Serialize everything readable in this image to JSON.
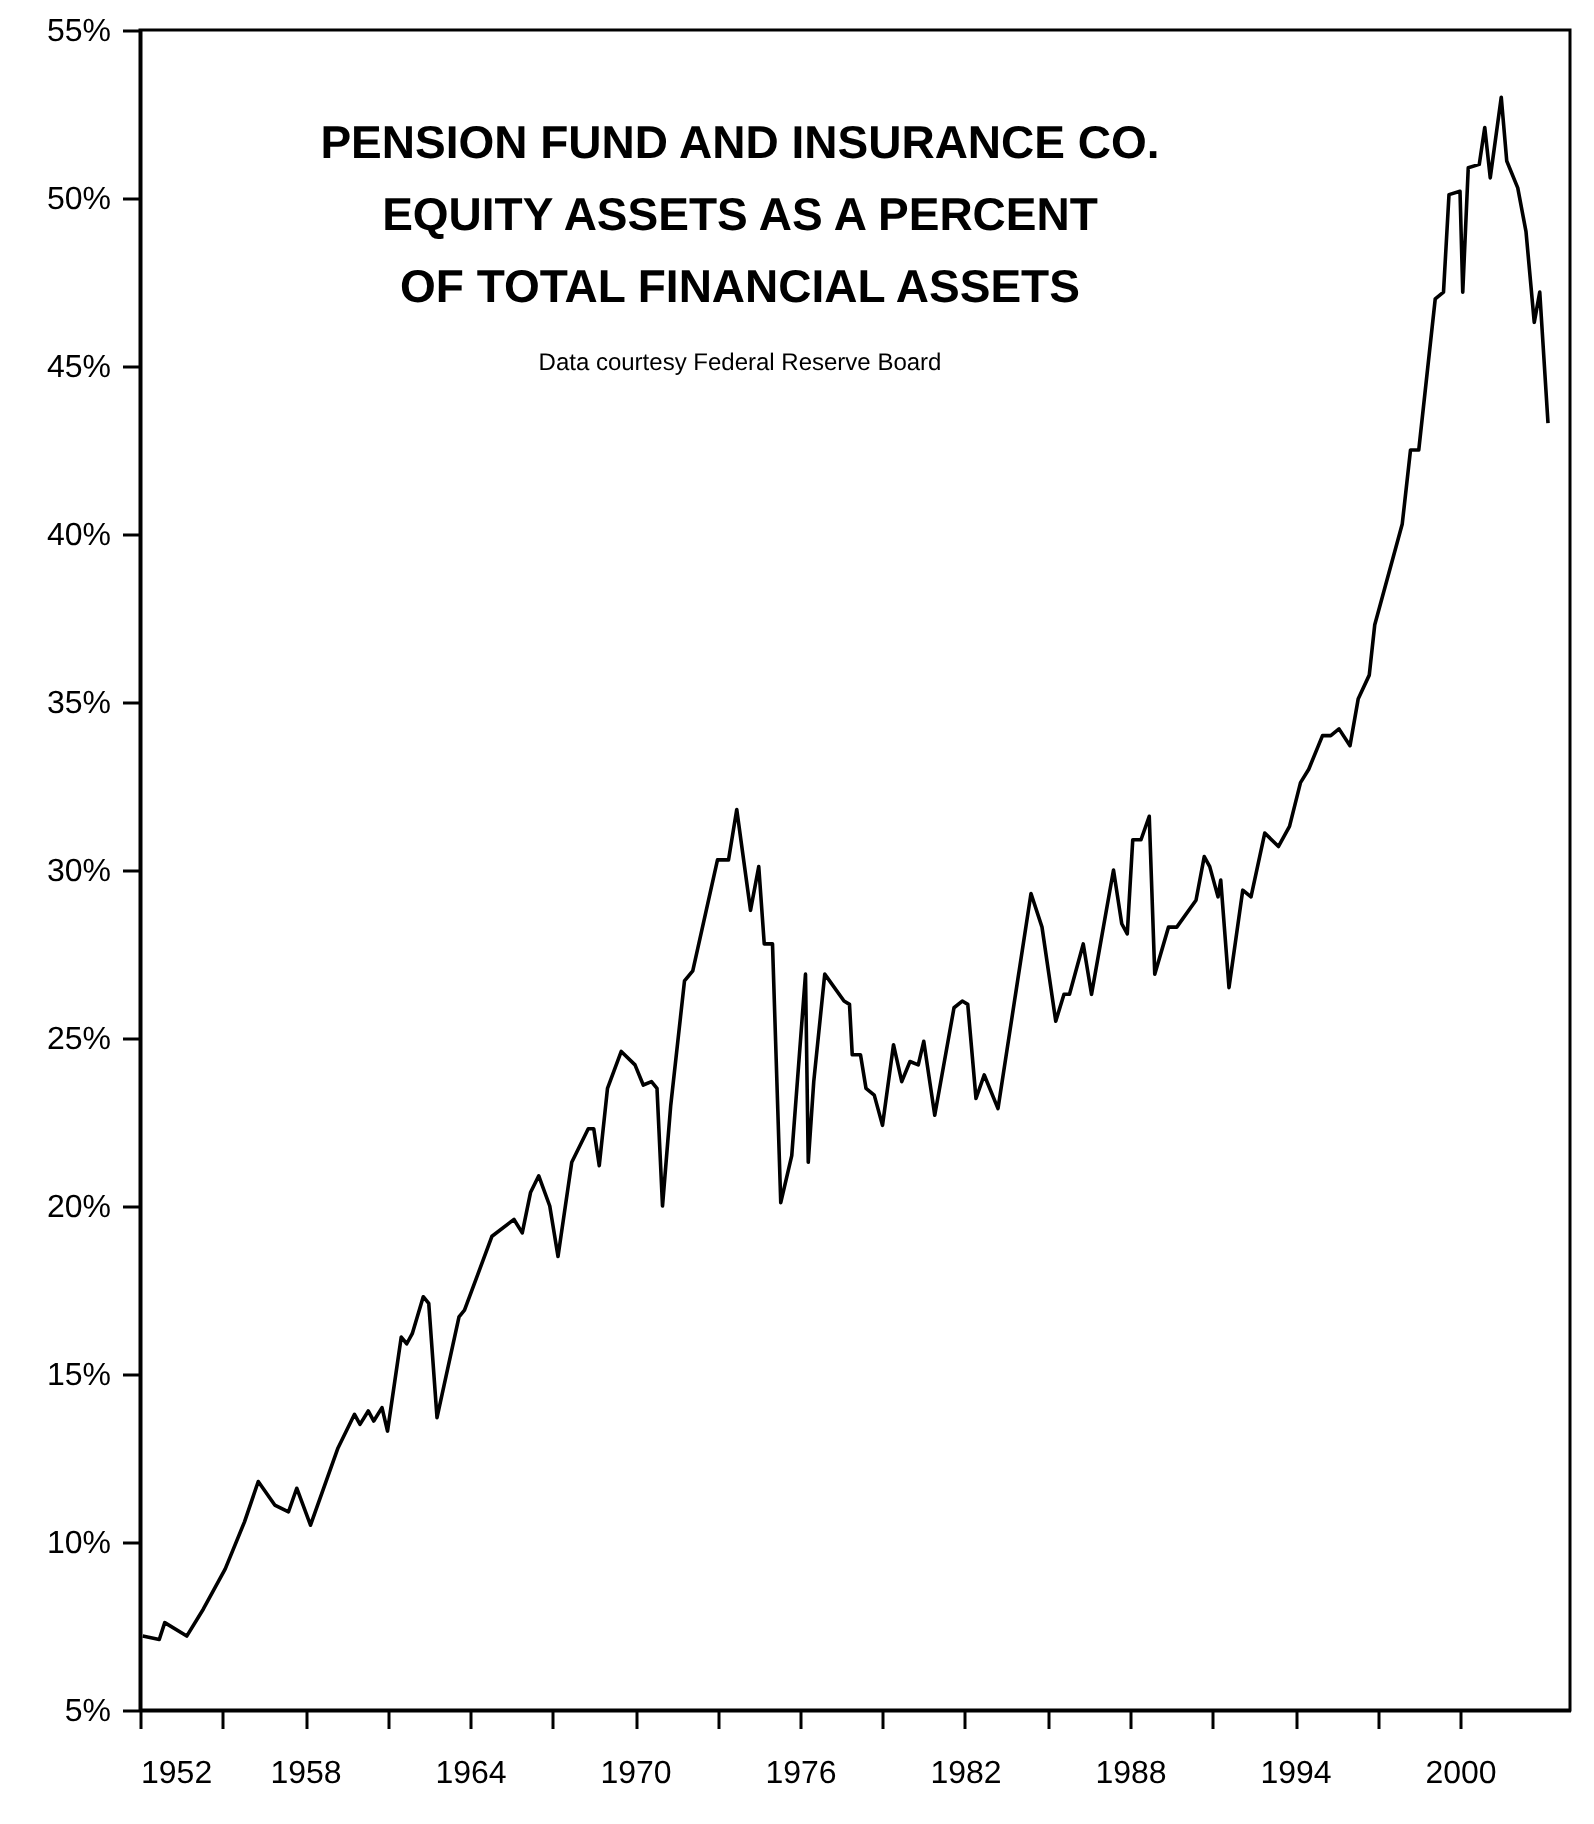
{
  "chart_data": {
    "type": "line",
    "title": "PENSION FUND AND INSURANCE CO.\nEQUITY ASSETS AS A PERCENT\nOF TOTAL FINANCIAL ASSETS",
    "annotations": [
      "Data courtesy Federal Reserve Board"
    ],
    "x": [
      1952.1,
      1952.7,
      1952.9,
      1953.7,
      1954.3,
      1955.1,
      1955.8,
      1956.3,
      1956.9,
      1957.4,
      1957.7,
      1958.2,
      1959.2,
      1959.8,
      1960.0,
      1960.3,
      1960.5,
      1960.8,
      1961.0,
      1961.5,
      1961.7,
      1961.9,
      1962.3,
      1962.5,
      1962.8,
      1963.6,
      1963.8,
      1964.8,
      1965.6,
      1965.9,
      1966.2,
      1966.5,
      1966.9,
      1967.2,
      1967.7,
      1968.3,
      1968.5,
      1968.7,
      1969.0,
      1969.5,
      1970.0,
      1970.3,
      1970.6,
      1970.8,
      1971.0,
      1971.3,
      1971.8,
      1972.1,
      1973.0,
      1973.4,
      1973.7,
      1974.2,
      1974.5,
      1974.7,
      1975.0,
      1975.3,
      1975.7,
      1976.2,
      1976.3,
      1976.5,
      1976.9,
      1977.6,
      1977.8,
      1977.9,
      1978.2,
      1978.4,
      1978.7,
      1979.0,
      1979.4,
      1979.7,
      1980.0,
      1980.3,
      1980.5,
      1980.9,
      1981.6,
      1981.9,
      1982.1,
      1982.4,
      1982.7,
      1983.2,
      1984.4,
      1984.8,
      1985.3,
      1985.6,
      1985.8,
      1986.3,
      1986.6,
      1987.4,
      1987.7,
      1987.9,
      1988.1,
      1988.4,
      1988.7,
      1988.9,
      1989.4,
      1989.7,
      1990.4,
      1990.7,
      1990.9,
      1991.2,
      1991.3,
      1991.6,
      1992.1,
      1992.4,
      1992.9,
      1993.4,
      1993.8,
      1994.2,
      1994.5,
      1995.0,
      1995.3,
      1995.6,
      1996.0,
      1996.3,
      1996.7,
      1996.9,
      1997.9,
      1998.2,
      1998.5,
      1999.1,
      1999.4,
      1999.6,
      2000.0,
      2000.1,
      2000.3,
      2000.7,
      2000.9,
      2001.1,
      2001.5,
      2001.7,
      2002.1,
      2002.4,
      2002.7,
      2002.9,
      2003.2
    ],
    "series": [
      {
        "color": "#000000",
        "values": [
          7.2,
          7.1,
          7.6,
          7.2,
          8.0,
          9.2,
          10.6,
          11.8,
          11.1,
          10.9,
          11.6,
          10.5,
          12.8,
          13.8,
          13.5,
          13.9,
          13.6,
          14.0,
          13.3,
          16.1,
          15.9,
          16.2,
          17.3,
          17.1,
          13.7,
          16.7,
          16.9,
          19.1,
          19.6,
          19.2,
          20.4,
          20.9,
          20.0,
          18.5,
          21.3,
          22.3,
          22.3,
          21.2,
          23.5,
          24.6,
          24.2,
          23.6,
          23.7,
          23.5,
          20.0,
          23.0,
          26.7,
          27.0,
          30.3,
          30.3,
          31.8,
          28.8,
          30.1,
          27.8,
          27.8,
          20.1,
          21.5,
          26.9,
          21.3,
          23.7,
          26.9,
          26.1,
          26.0,
          24.5,
          24.5,
          23.5,
          23.3,
          22.4,
          24.8,
          23.7,
          24.3,
          24.2,
          24.9,
          22.7,
          25.9,
          26.1,
          26.0,
          23.2,
          23.9,
          22.9,
          29.3,
          28.3,
          25.5,
          26.3,
          26.3,
          27.8,
          26.3,
          30.0,
          28.4,
          28.1,
          30.9,
          30.9,
          31.6,
          26.9,
          28.3,
          28.3,
          29.1,
          30.4,
          30.1,
          29.2,
          29.7,
          26.5,
          29.4,
          29.2,
          31.1,
          30.7,
          31.3,
          32.6,
          33.0,
          34.0,
          34.0,
          34.2,
          33.7,
          35.1,
          35.8,
          37.3,
          40.3,
          42.5,
          42.5,
          47.0,
          47.2,
          50.1,
          50.2,
          47.2,
          50.9,
          51.0,
          52.1,
          50.6,
          53.0,
          51.1,
          50.3,
          49.0,
          46.3,
          47.2,
          43.3
        ]
      }
    ],
    "xlim": [
      1952,
      2004
    ],
    "xticks": [
      1952,
      {
        "value": 1955,
        "label": null
      },
      1958,
      {
        "value": 1961,
        "label": null
      },
      1964,
      {
        "value": 1967,
        "label": null
      },
      1970,
      {
        "value": 1973,
        "label": null
      },
      1976,
      {
        "value": 1979,
        "label": null
      },
      1982,
      {
        "value": 1985,
        "label": null
      },
      1988,
      {
        "value": 1991,
        "label": null
      },
      1994,
      {
        "value": 1997,
        "label": null
      },
      2000
    ],
    "ylim": [
      5,
      55
    ],
    "yticks": [
      {
        "value": 5,
        "label": "5%"
      },
      {
        "value": 10,
        "label": "10%"
      },
      {
        "value": 15,
        "label": "15%"
      },
      {
        "value": 20,
        "label": "20%"
      },
      {
        "value": 25,
        "label": "25%"
      },
      {
        "value": 30,
        "label": "30%"
      },
      {
        "value": 35,
        "label": "35%"
      },
      {
        "value": 40,
        "label": "40%"
      },
      {
        "value": 45,
        "label": "45%"
      },
      {
        "value": 50,
        "label": "50%"
      },
      {
        "value": 55,
        "label": "55%"
      }
    ],
    "grid": false,
    "marker": "none",
    "line_style": "solid"
  }
}
